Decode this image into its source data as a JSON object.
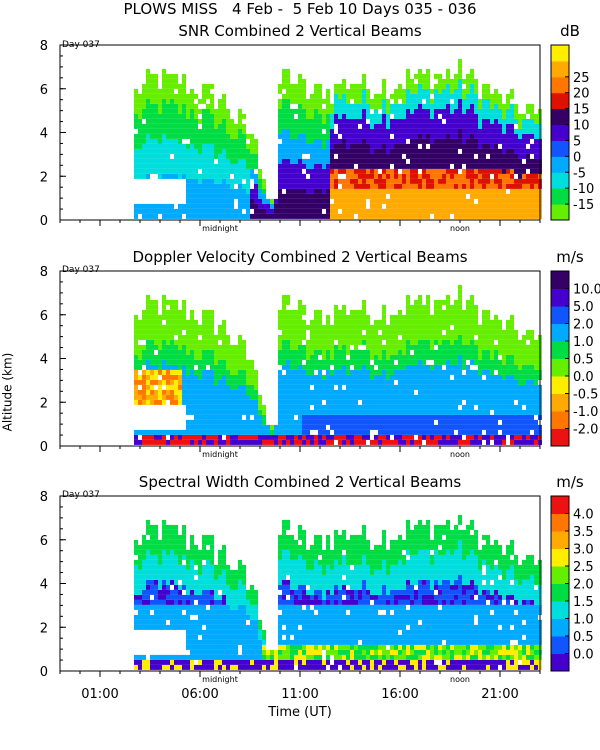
{
  "header": {
    "line1": "PLOWS MISS   4 Feb -  5 Feb 10 Days 035 - 036"
  },
  "axes": {
    "ylabel": "Altitude (km)",
    "xlabel": "Time (UT)",
    "day_label": "Day 037",
    "xticklabels": [
      "01:00",
      "06:00",
      "11:00",
      "16:00",
      "21:00"
    ],
    "xtick_hours": [
      1,
      6,
      11,
      16,
      21
    ],
    "inner_labels": [
      "midnight",
      "noon"
    ],
    "inner_label_hours": [
      7,
      19
    ],
    "yticklabels": [
      "0",
      "2",
      "4",
      "6",
      "8"
    ],
    "yticks_km": [
      0,
      2,
      4,
      6,
      8
    ]
  },
  "colors": {
    "snr": [
      "#66ee00",
      "#00dd44",
      "#00dddd",
      "#00aaff",
      "#1155ff",
      "#4400cc",
      "#330066",
      "#dd1100",
      "#ff7700",
      "#ffaa00",
      "#ffee00"
    ],
    "doppler": [
      "#ee1111",
      "#ff7700",
      "#ffaa00",
      "#ffee00",
      "#66ee00",
      "#00dd44",
      "#00aaff",
      "#1155ff",
      "#4400cc",
      "#330066"
    ],
    "width": [
      "#4400cc",
      "#1155ff",
      "#00aaff",
      "#00dddd",
      "#00dd44",
      "#66ee00",
      "#ffee00",
      "#ffaa00",
      "#ff7700",
      "#ee1111"
    ]
  },
  "chart_data": [
    {
      "type": "heatmap",
      "title": "SNR Combined 2 Vertical Beams",
      "colorbar_label": "dB",
      "colorbar_ticks": [
        "-15",
        "-10",
        "-5",
        "0",
        "5",
        "10",
        "15",
        "20",
        "25"
      ],
      "xlabel": "Time (UT)",
      "ylabel": "Altitude (km)",
      "xlim_hours": [
        -1,
        23
      ],
      "ylim": [
        0,
        8
      ],
      "description_series": [
        {
          "name": "echo top (km)",
          "hours": [
            2.7,
            3.5,
            5.0,
            7.0,
            8.5,
            9.5,
            10.0,
            11.5,
            13.0,
            15.0,
            17.0,
            19.0,
            21.0,
            23.0
          ],
          "values": [
            5.6,
            6.4,
            6.2,
            5.4,
            3.8,
            1.0,
            6.8,
            5.6,
            6.2,
            6.0,
            6.5,
            6.7,
            5.4,
            4.6
          ]
        }
      ]
    },
    {
      "type": "heatmap",
      "title": "Doppler Velocity Combined 2 Vertical Beams",
      "colorbar_label": "m/s",
      "colorbar_ticks": [
        "-2.0",
        "-1.0",
        "-0.5",
        "0.0",
        "0.5",
        "1.0",
        "2.0",
        "5.0",
        "10.0"
      ],
      "xlabel": "Time (UT)",
      "ylabel": "Altitude (km)",
      "xlim_hours": [
        -1,
        23
      ],
      "ylim": [
        0,
        8
      ]
    },
    {
      "type": "heatmap",
      "title": "Spectral Width Combined 2 Vertical Beams",
      "colorbar_label": "m/s",
      "colorbar_ticks": [
        "0.0",
        "0.5",
        "1.0",
        "1.5",
        "2.0",
        "2.5",
        "3.0",
        "3.5",
        "4.0"
      ],
      "xlabel": "Time (UT)",
      "ylabel": "Altitude (km)",
      "xlim_hours": [
        -1,
        23
      ],
      "ylim": [
        0,
        8
      ]
    }
  ]
}
